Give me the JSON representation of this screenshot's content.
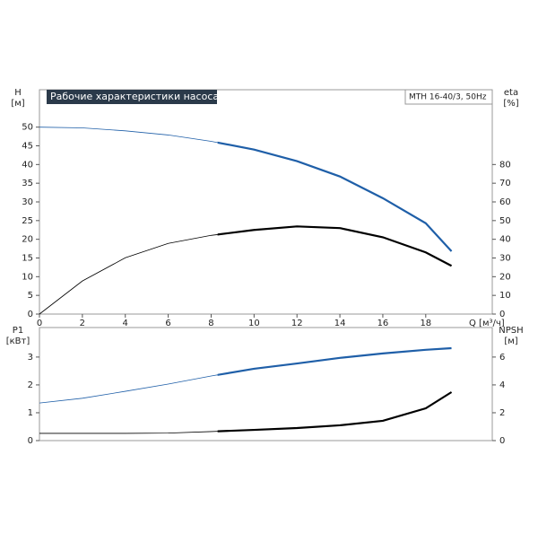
{
  "chart_data": [
    {
      "type": "line",
      "title": "Рабочие характеристики насоса",
      "subtitle": "MTH 16-40/3, 50Hz",
      "y_label": "H",
      "y_unit": "[м]",
      "y2_label": "eta",
      "y2_unit": "[%]",
      "x_label": "Q [м³/ч]",
      "x": [
        0,
        2,
        4,
        6,
        8,
        10,
        12,
        14,
        16,
        18,
        19.2
      ],
      "series": [
        {
          "name": "H",
          "color": "#1f5fa8",
          "values": [
            50,
            49.8,
            49,
            47.9,
            46.2,
            44,
            40.9,
            36.8,
            31,
            24.3,
            16.8
          ]
        },
        {
          "name": "eta",
          "color": "#000000",
          "axis": "y2",
          "values": [
            0,
            17.7,
            30.1,
            37.8,
            42.1,
            45,
            46.9,
            46,
            41.1,
            33,
            25.8
          ]
        }
      ],
      "duty_range": [
        8.3,
        19.2
      ],
      "xlim": [
        0,
        21.1
      ],
      "xticks": [
        0,
        2,
        4,
        6,
        8,
        10,
        12,
        14,
        16,
        18
      ],
      "ylim": [
        0,
        60
      ],
      "yticks": [
        0,
        5,
        10,
        15,
        20,
        25,
        30,
        35,
        40,
        45,
        50
      ],
      "y2lim": [
        0,
        120
      ],
      "y2ticks": [
        0,
        10,
        20,
        30,
        40,
        50,
        60,
        70,
        80
      ]
    },
    {
      "type": "line",
      "y_label": "P1",
      "y_unit": "[кВт]",
      "y2_label": "NPSH",
      "y2_unit": "[м]",
      "x": [
        0,
        2,
        4,
        6,
        8,
        10,
        12,
        14,
        16,
        18,
        19.2
      ],
      "series": [
        {
          "name": "P1",
          "color": "#1f5fa8",
          "values": [
            1.35,
            1.52,
            1.77,
            2.03,
            2.32,
            2.58,
            2.77,
            2.97,
            3.13,
            3.26,
            3.32
          ]
        },
        {
          "name": "NPSH",
          "color": "#000000",
          "axis": "y2",
          "values": [
            0.52,
            0.52,
            0.52,
            0.54,
            0.65,
            0.77,
            0.9,
            1.1,
            1.42,
            2.32,
            3.48
          ]
        }
      ],
      "duty_range": [
        8.3,
        19.2
      ],
      "xlim": [
        0,
        21.1
      ],
      "ylim": [
        0,
        4.06
      ],
      "yticks": [
        0,
        1,
        2,
        3
      ],
      "y2lim": [
        0,
        8.12
      ],
      "y2ticks": [
        0,
        2,
        4,
        6
      ]
    }
  ]
}
